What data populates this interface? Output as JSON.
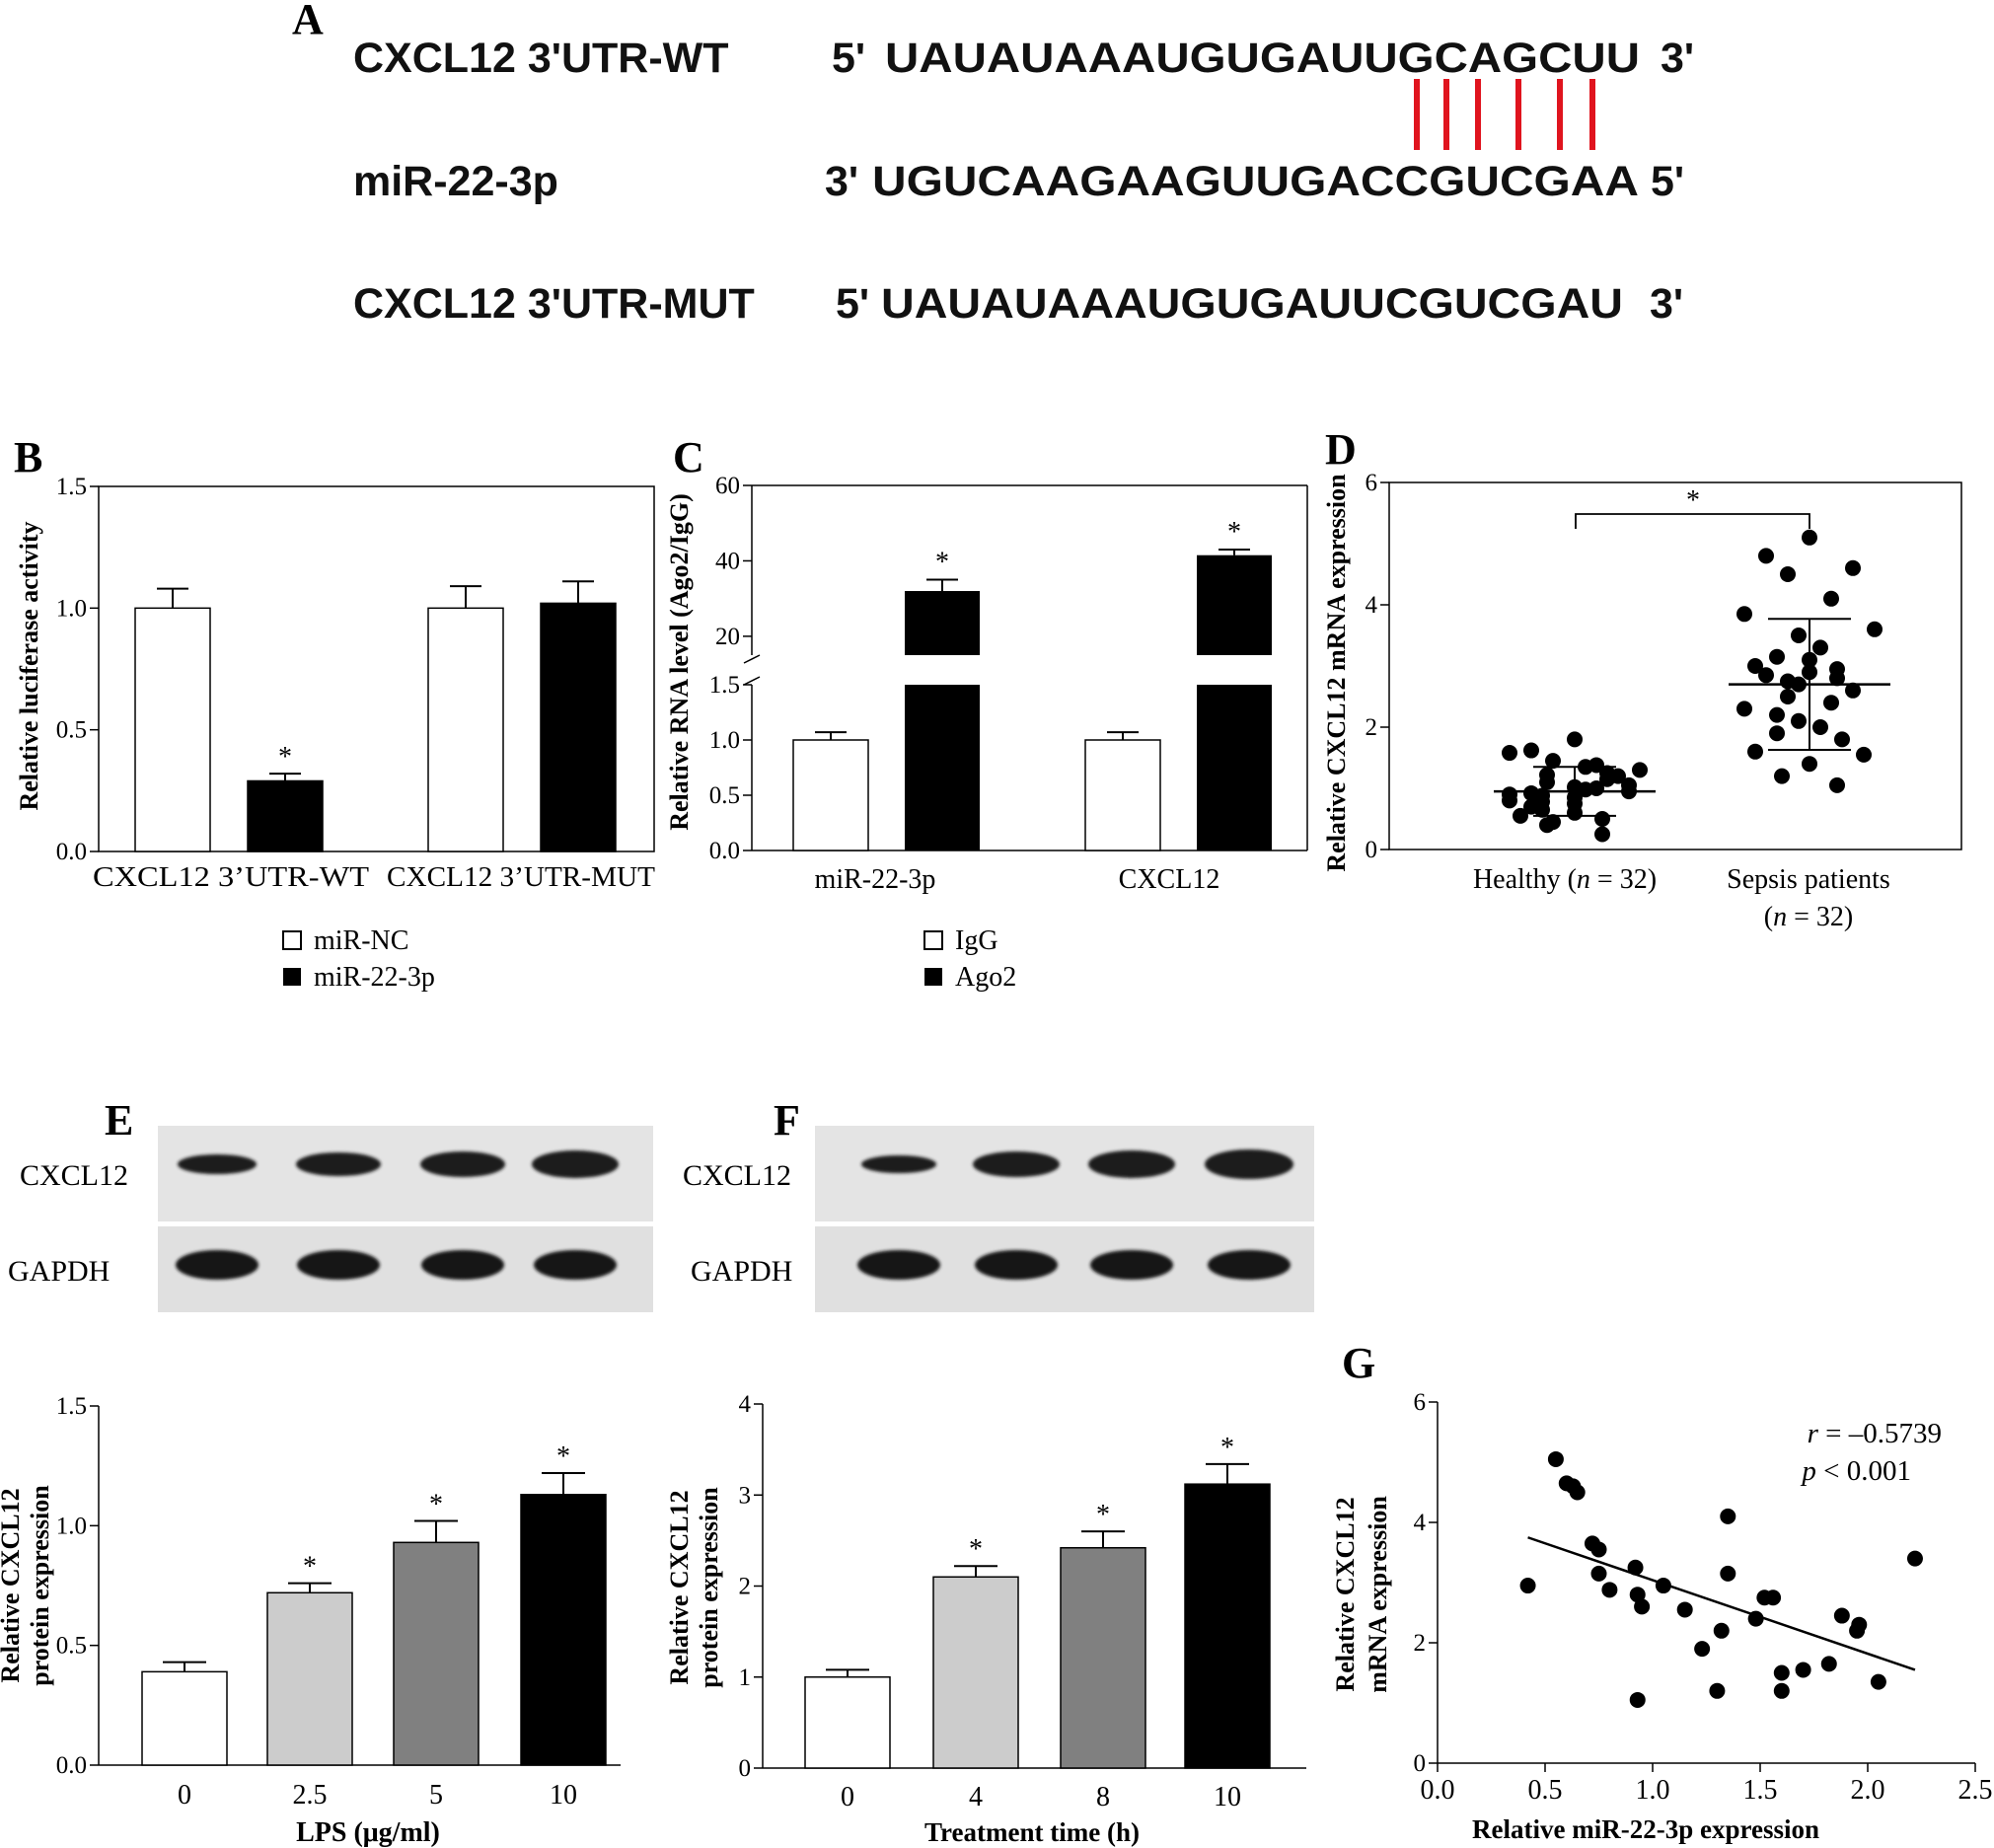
{
  "panel_labels": {
    "A": "A",
    "B": "B",
    "C": "C",
    "D": "D",
    "E": "E",
    "F": "F",
    "G": "G"
  },
  "panel_a": {
    "rows": [
      {
        "name": "CXCL12 3'UTR-WT",
        "prefix": "5'",
        "sequence": "UAUAUAAAUGUGAUUGCAGCUU",
        "suffix": "3'"
      },
      {
        "name": "miR-22-3p",
        "prefix": "3'",
        "sequence": "UGUCAAGAAGUUGACCGUCGAA",
        "suffix": "5'"
      },
      {
        "name": "CXCL12 3'UTR-MUT",
        "prefix": "5'",
        "sequence": "UAUAUAAAUGUGAUUCGUCGAU",
        "suffix": "3'"
      }
    ],
    "pairing_line_color": "#e0141e",
    "pairing_count": 6
  },
  "chart_data": [
    {
      "panel": "B",
      "type": "bar",
      "categories": [
        "CXCL12 3’UTR-WT",
        "CXCL12 3’UTR-MUT"
      ],
      "series": [
        {
          "name": "miR-NC",
          "color": "#ffffff",
          "values": [
            1.0,
            1.0
          ],
          "errors": [
            0.08,
            0.09
          ]
        },
        {
          "name": "miR-22-3p",
          "color": "#000000",
          "values": [
            0.29,
            1.02
          ],
          "errors": [
            0.03,
            0.09
          ]
        }
      ],
      "significance": [
        "*",
        ""
      ],
      "ylabel": "Relative luciferase activity",
      "ylim": [
        0,
        1.5
      ],
      "yticks": [
        "0.0",
        "0.5",
        "1.0",
        "1.5"
      ],
      "legend_placement": "bottom"
    },
    {
      "panel": "C",
      "type": "bar",
      "axis_break": true,
      "categories": [
        "miR-22-3p",
        "CXCL12"
      ],
      "series": [
        {
          "name": "IgG",
          "color": "#ffffff",
          "values": [
            1.0,
            1.0
          ],
          "errors": [
            0.07,
            0.07
          ]
        },
        {
          "name": "Ago2",
          "color": "#000000",
          "values": [
            32,
            41.5
          ],
          "errors": [
            3,
            1.5
          ]
        }
      ],
      "significance": [
        "*",
        "*"
      ],
      "ylabel": "Relative RNA level (Ago2/IgG)",
      "lower_ylim": [
        0,
        1.5
      ],
      "lower_yticks": [
        "0.0",
        "0.5",
        "1.0",
        "1.5"
      ],
      "upper_ylim": [
        15,
        60
      ],
      "upper_yticks": [
        "20",
        "40",
        "60"
      ],
      "legend_placement": "bottom"
    },
    {
      "panel": "D",
      "type": "scatter",
      "categories": [
        "Healthy (n = 32)",
        "Sepsis patients (n = 32)"
      ],
      "category_lines": [
        [
          {
            "t": "Healthy ("
          },
          {
            "t": "n",
            "i": true
          },
          {
            "t": " = 32)"
          }
        ],
        [
          {
            "t": "Sepsis patients"
          }
        ],
        [
          {
            "t": "("
          },
          {
            "t": "n",
            "i": true
          },
          {
            "t": " = 32)"
          }
        ]
      ],
      "groups": [
        {
          "name": "Healthy",
          "mean": 0.95,
          "sd": 0.4,
          "values": [
            1.8,
            1.62,
            1.58,
            1.45,
            1.38,
            1.35,
            1.3,
            1.25,
            1.22,
            1.2,
            1.15,
            1.1,
            1.05,
            1.02,
            1.0,
            0.98,
            0.95,
            0.92,
            0.9,
            0.88,
            0.85,
            0.8,
            0.78,
            0.75,
            0.7,
            0.65,
            0.6,
            0.55,
            0.5,
            0.45,
            0.4,
            0.25
          ]
        },
        {
          "name": "Sepsis patients",
          "mean": 2.7,
          "sd": 1.07,
          "values": [
            5.1,
            4.8,
            4.6,
            4.5,
            4.1,
            3.85,
            3.6,
            3.5,
            3.3,
            3.15,
            3.1,
            3.0,
            2.95,
            2.9,
            2.85,
            2.8,
            2.75,
            2.7,
            2.6,
            2.5,
            2.4,
            2.3,
            2.2,
            2.1,
            2.0,
            1.9,
            1.8,
            1.6,
            1.55,
            1.4,
            1.2,
            1.05
          ]
        }
      ],
      "significance": "*",
      "ylabel": "Relative CXCL12 mRNA expression",
      "ylim": [
        0,
        6
      ],
      "yticks": [
        "0",
        "2",
        "4",
        "6"
      ]
    },
    {
      "panel": "E",
      "type": "bar",
      "categories": [
        "0",
        "2.5",
        "5",
        "10"
      ],
      "values": [
        0.39,
        0.72,
        0.93,
        1.13
      ],
      "errors": [
        0.04,
        0.04,
        0.09,
        0.09
      ],
      "colors": [
        "#ffffff",
        "#cccccc",
        "#808080",
        "#000000"
      ],
      "significance": [
        "",
        "*",
        "*",
        "*"
      ],
      "xlabel": "LPS (μg/ml)",
      "ylabel": [
        "Relative CXCL12",
        "protein expression"
      ],
      "ylim": [
        0,
        1.5
      ],
      "yticks": [
        "0.0",
        "0.5",
        "1.0",
        "1.5"
      ]
    },
    {
      "panel": "F",
      "type": "bar",
      "categories": [
        "0",
        "4",
        "8",
        "10"
      ],
      "values": [
        1.0,
        2.1,
        2.42,
        3.12
      ],
      "errors": [
        0.08,
        0.12,
        0.18,
        0.22
      ],
      "colors": [
        "#ffffff",
        "#cccccc",
        "#808080",
        "#000000"
      ],
      "significance": [
        "",
        "*",
        "*",
        "*"
      ],
      "xlabel": "Treatment time (h)",
      "ylabel": [
        "Relative CXCL12",
        "protein expression"
      ],
      "ylim": [
        0,
        4
      ],
      "yticks": [
        "0",
        "1",
        "2",
        "3",
        "4"
      ]
    },
    {
      "panel": "G",
      "type": "scatter",
      "points": [
        [
          0.42,
          2.95
        ],
        [
          0.55,
          5.05
        ],
        [
          0.6,
          4.65
        ],
        [
          0.63,
          4.6
        ],
        [
          0.65,
          4.5
        ],
        [
          0.72,
          3.65
        ],
        [
          0.75,
          3.55
        ],
        [
          0.75,
          3.15
        ],
        [
          0.8,
          2.88
        ],
        [
          0.92,
          3.25
        ],
        [
          0.93,
          2.8
        ],
        [
          0.95,
          2.6
        ],
        [
          0.93,
          1.05
        ],
        [
          1.05,
          2.95
        ],
        [
          1.15,
          2.55
        ],
        [
          1.23,
          1.9
        ],
        [
          1.3,
          1.2
        ],
        [
          1.32,
          2.2
        ],
        [
          1.35,
          3.15
        ],
        [
          1.35,
          4.1
        ],
        [
          1.48,
          2.4
        ],
        [
          1.52,
          2.75
        ],
        [
          1.56,
          2.75
        ],
        [
          1.6,
          1.5
        ],
        [
          1.6,
          1.2
        ],
        [
          1.7,
          1.55
        ],
        [
          1.82,
          1.65
        ],
        [
          1.88,
          2.45
        ],
        [
          1.95,
          2.2
        ],
        [
          1.96,
          2.3
        ],
        [
          2.05,
          1.35
        ],
        [
          2.22,
          3.4
        ]
      ],
      "regression": {
        "x": [
          0.42,
          2.22
        ],
        "y": [
          3.75,
          1.55
        ]
      },
      "stats": {
        "r_symbol": "r",
        "r_value": " = –0.5739",
        "p_symbol": "p",
        "p_value": " < 0.001"
      },
      "xlabel": "Relative miR-22-3p expression",
      "ylabel": [
        "Relative CXCL12",
        "mRNA expression"
      ],
      "xlim": [
        0,
        2.5
      ],
      "xticks": [
        "0.0",
        "0.5",
        "1.0",
        "1.5",
        "2.0",
        "2.5"
      ],
      "ylim": [
        0,
        6
      ],
      "yticks": [
        "0",
        "2",
        "4",
        "6"
      ]
    }
  ],
  "blots": {
    "E": {
      "labels": [
        "CXCL12",
        "GAPDH"
      ]
    },
    "F": {
      "labels": [
        "CXCL12",
        "GAPDH"
      ]
    }
  }
}
